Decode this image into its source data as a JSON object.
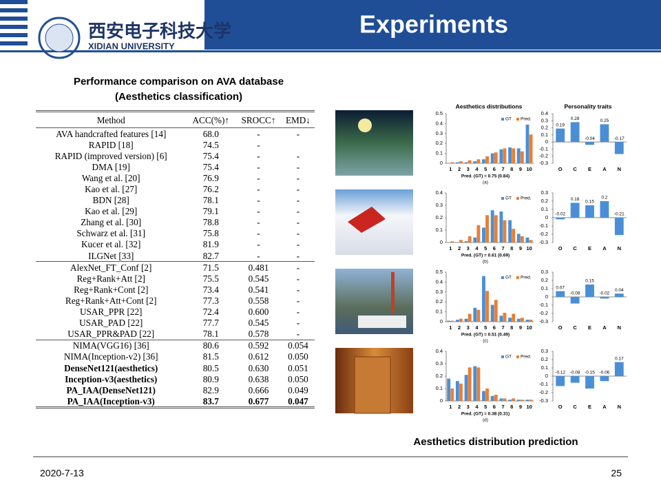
{
  "header": {
    "university_cn": "西安电子科技大学",
    "university": "XIDIAN UNIVERSITY",
    "title": "Experiments"
  },
  "table": {
    "caption": [
      "Performance comparison on AVA database",
      "(Aesthetics classification)"
    ],
    "columns": [
      "Method",
      "ACC(%)↑",
      "SROCC↑",
      "EMD↓"
    ],
    "groups": [
      [
        [
          "AVA handcrafted features [14]",
          "68.0",
          "-",
          "-"
        ],
        [
          "RAPID [18]",
          "74.5",
          "-",
          ""
        ],
        [
          "RAPID (improved version) [6]",
          "75.4",
          "-",
          "-"
        ],
        [
          "DMA [19]",
          "75.4",
          "-",
          "-"
        ],
        [
          "Wang et al. [20]",
          "76.9",
          "-",
          "-"
        ],
        [
          "Kao et al. [27]",
          "76.2",
          "-",
          "-"
        ],
        [
          "BDN [28]",
          "78.1",
          "-",
          "-"
        ],
        [
          "Kao et al. [29]",
          "79.1",
          "-",
          "-"
        ],
        [
          "Zhang et al. [30]",
          "78.8",
          "-",
          "-"
        ],
        [
          "Schwarz et al. [31]",
          "75.8",
          "-",
          "-"
        ],
        [
          "Kucer et al. [32]",
          "81.9",
          "-",
          "-"
        ],
        [
          "ILGNet [33]",
          "82.7",
          "-",
          "-"
        ]
      ],
      [
        [
          "AlexNet_FT_Conf [2]",
          "71.5",
          "0.481",
          "-"
        ],
        [
          "Reg+Rank+Att [2]",
          "75.5",
          "0.545",
          "-"
        ],
        [
          "Reg+Rank+Cont [2]",
          "73.4",
          "0.541",
          "-"
        ],
        [
          "Reg+Rank+Att+Cont [2]",
          "77.3",
          "0.558",
          "-"
        ],
        [
          "USAR_PPR [22]",
          "72.4",
          "0.600",
          "-"
        ],
        [
          "USAR_PAD [22]",
          "77.7",
          "0.545",
          "-"
        ],
        [
          "USAR_PPR&PAD [22]",
          "78.1",
          "0.578",
          "-"
        ]
      ],
      [
        [
          "NIMA(VGG16) [36]",
          "80.6",
          "0.592",
          "0.054"
        ],
        [
          "NIMA(Inception-v2) [36]",
          "81.5",
          "0.612",
          "0.050"
        ],
        [
          "DenseNet121(aesthetics)",
          "80.5",
          "0.630",
          "0.051"
        ],
        [
          "Inception-v3(aesthetics)",
          "80.9",
          "0.638",
          "0.050"
        ],
        [
          "PA_IAA(DenseNet121)",
          "82.9",
          "0.666",
          "0.049"
        ],
        [
          "PA_IAA(Inception-v3)",
          "83.7",
          "0.677",
          "0.047"
        ]
      ]
    ]
  },
  "figure": {
    "caption": "Aesthetics distribution prediction",
    "dist_title": "Aesthetics distributions",
    "traits_title": "Personality traits",
    "series": [
      {
        "name": "GT",
        "color": "#4a8fd6"
      },
      {
        "name": "Pred.",
        "color": "#ed7d31"
      }
    ],
    "categories": [
      "1",
      "2",
      "3",
      "4",
      "5",
      "6",
      "7",
      "8",
      "9",
      "10"
    ],
    "trait_categories": [
      "O",
      "C",
      "E",
      "A",
      "N"
    ],
    "trait_color": "#4a8fd6",
    "panels": [
      {
        "label": "(a)",
        "pred": "Pred. (GT) = 0.75 (0.84)",
        "ylim": [
          0,
          0.5
        ],
        "yticks": [
          0,
          0.1,
          0.2,
          0.3,
          0.4,
          0.5
        ],
        "gt": [
          0,
          0.01,
          0.01,
          0.02,
          0.04,
          0.1,
          0.14,
          0.16,
          0.15,
          0.39
        ],
        "pred_values": [
          0.01,
          0.02,
          0.03,
          0.04,
          0.07,
          0.11,
          0.15,
          0.15,
          0.12,
          0.29
        ],
        "traits": [
          0.19,
          0.28,
          -0.04,
          0.25,
          -0.17
        ],
        "tlim": [
          -0.3,
          0.4
        ],
        "tticks": [
          -0.3,
          -0.2,
          -0.1,
          0,
          0.1,
          0.2,
          0.3,
          0.4
        ]
      },
      {
        "label": "(b)",
        "pred": "Pred. (GT) = 0.61 (0.69)",
        "ylim": [
          0,
          0.4
        ],
        "yticks": [
          0,
          0.1,
          0.2,
          0.3,
          0.4
        ],
        "gt": [
          0,
          0,
          0.01,
          0.04,
          0.12,
          0.26,
          0.25,
          0.18,
          0.07,
          0.04
        ],
        "pred_values": [
          0.01,
          0.02,
          0.05,
          0.14,
          0.22,
          0.22,
          0.18,
          0.11,
          0.05,
          0.02
        ],
        "traits": [
          -0.02,
          0.18,
          0.15,
          0.2,
          -0.21
        ],
        "tlim": [
          -0.3,
          0.3
        ],
        "tticks": [
          -0.3,
          -0.2,
          -0.1,
          0,
          0.1,
          0.2,
          0.3
        ]
      },
      {
        "label": "(c)",
        "pred": "Pred. (GT) = 0.51 (0.49)",
        "ylim": [
          0,
          0.5
        ],
        "yticks": [
          0,
          0.1,
          0.2,
          0.3,
          0.4,
          0.5
        ],
        "gt": [
          0.01,
          0.02,
          0.03,
          0.14,
          0.46,
          0.17,
          0.06,
          0.04,
          0.03,
          0.02
        ],
        "pred_values": [
          0.01,
          0.03,
          0.08,
          0.12,
          0.31,
          0.22,
          0.09,
          0.08,
          0.04,
          0.02
        ],
        "traits": [
          0.07,
          -0.08,
          0.15,
          -0.02,
          0.04
        ],
        "tlim": [
          -0.3,
          0.3
        ],
        "tticks": [
          -0.3,
          -0.2,
          -0.1,
          0,
          0.1,
          0.2,
          0.3
        ]
      },
      {
        "label": "(d)",
        "pred": "Pred. (GT) = 0.38 (0.31)",
        "ylim": [
          0,
          0.4
        ],
        "yticks": [
          0,
          0.1,
          0.2,
          0.3,
          0.4
        ],
        "gt": [
          0.18,
          0.16,
          0.21,
          0.28,
          0.08,
          0.04,
          0.02,
          0.01,
          0.01,
          0.01
        ],
        "pred_values": [
          0.1,
          0.14,
          0.27,
          0.27,
          0.1,
          0.05,
          0.02,
          0.02,
          0.01,
          0.01
        ],
        "traits": [
          -0.12,
          -0.08,
          -0.15,
          -0.06,
          0.17
        ],
        "tlim": [
          -0.3,
          0.3
        ],
        "tticks": [
          -0.3,
          -0.2,
          -0.1,
          0,
          0.1,
          0.2,
          0.3
        ]
      }
    ]
  },
  "footer": {
    "date": "2020-7-13",
    "page": "25"
  }
}
